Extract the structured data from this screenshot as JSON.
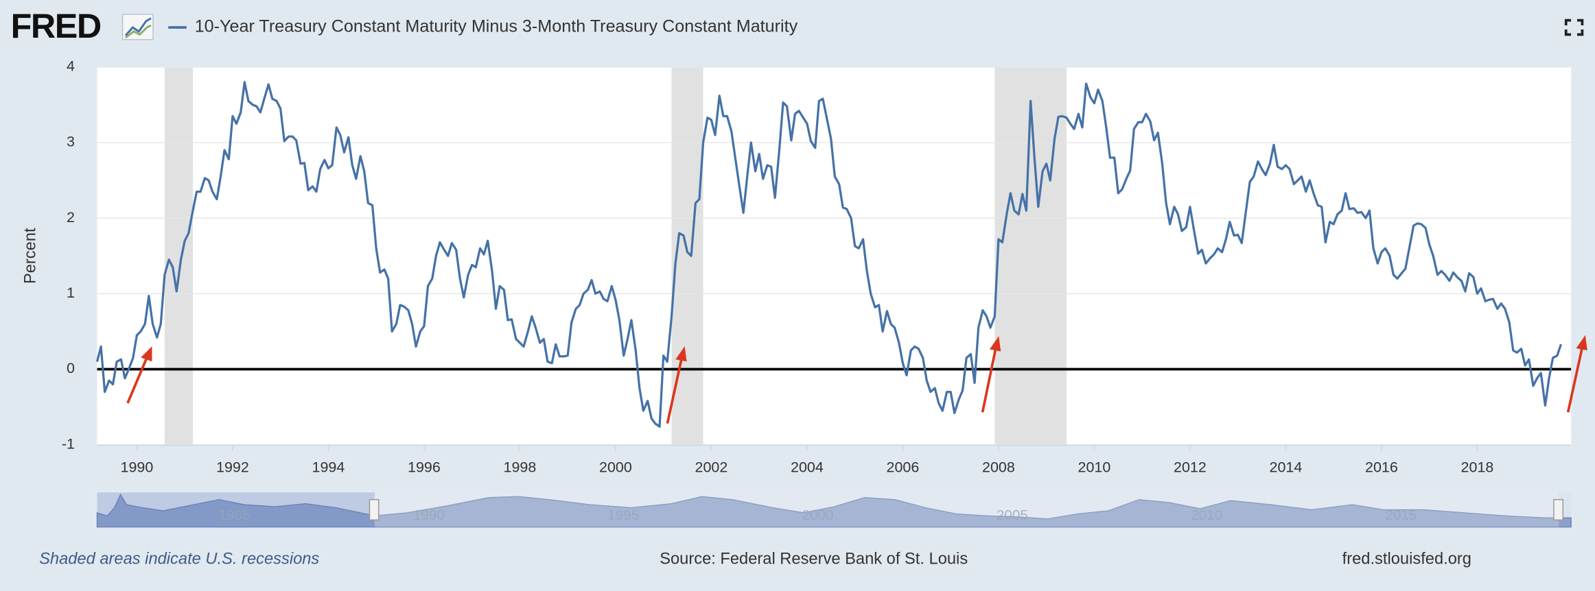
{
  "logo": "FRED",
  "chart_data": {
    "type": "line",
    "ylabel": "Percent",
    "series": [
      {
        "name": "10-Year Treasury Constant Maturity Minus 3-Month Treasury Constant Maturity",
        "color": "#4572a7",
        "x": [
          1989.17,
          1989.25,
          1989.33,
          1989.42,
          1989.5,
          1989.58,
          1989.67,
          1989.75,
          1989.83,
          1989.92,
          1990,
          1990.08,
          1990.17,
          1990.25,
          1990.33,
          1990.42,
          1990.5,
          1990.58,
          1990.67,
          1990.75,
          1990.83,
          1990.92,
          1991,
          1991.08,
          1991.17,
          1991.25,
          1991.33,
          1991.42,
          1991.5,
          1991.58,
          1991.67,
          1991.75,
          1991.83,
          1991.92,
          1992,
          1992.08,
          1992.17,
          1992.25,
          1992.33,
          1992.42,
          1992.5,
          1992.58,
          1992.67,
          1992.75,
          1992.83,
          1992.92,
          1993,
          1993.08,
          1993.17,
          1993.25,
          1993.33,
          1993.42,
          1993.5,
          1993.58,
          1993.67,
          1993.75,
          1993.83,
          1993.92,
          1994,
          1994.08,
          1994.17,
          1994.25,
          1994.33,
          1994.42,
          1994.5,
          1994.58,
          1994.67,
          1994.75,
          1994.83,
          1994.92,
          1995,
          1995.08,
          1995.17,
          1995.25,
          1995.33,
          1995.42,
          1995.5,
          1995.58,
          1995.67,
          1995.75,
          1995.83,
          1995.92,
          1996,
          1996.08,
          1996.17,
          1996.25,
          1996.33,
          1996.42,
          1996.5,
          1996.58,
          1996.67,
          1996.75,
          1996.83,
          1996.92,
          1997,
          1997.08,
          1997.17,
          1997.25,
          1997.33,
          1997.42,
          1997.5,
          1997.58,
          1997.67,
          1997.75,
          1997.83,
          1997.92,
          1998,
          1998.08,
          1998.17,
          1998.25,
          1998.33,
          1998.42,
          1998.5,
          1998.58,
          1998.67,
          1998.75,
          1998.83,
          1998.92,
          1999,
          1999.08,
          1999.17,
          1999.25,
          1999.33,
          1999.42,
          1999.5,
          1999.58,
          1999.67,
          1999.75,
          1999.83,
          1999.92,
          2000,
          2000.08,
          2000.17,
          2000.25,
          2000.33,
          2000.42,
          2000.5,
          2000.58,
          2000.67,
          2000.75,
          2000.83,
          2000.92,
          2001,
          2001.08,
          2001.17,
          2001.25,
          2001.33,
          2001.42,
          2001.5,
          2001.58,
          2001.67,
          2001.75,
          2001.83,
          2001.92,
          2002,
          2002.08,
          2002.17,
          2002.25,
          2002.33,
          2002.42,
          2002.5,
          2002.58,
          2002.67,
          2002.75,
          2002.83,
          2002.92,
          2003,
          2003.08,
          2003.17,
          2003.25,
          2003.33,
          2003.42,
          2003.5,
          2003.58,
          2003.67,
          2003.75,
          2003.83,
          2003.92,
          2004,
          2004.08,
          2004.17,
          2004.25,
          2004.33,
          2004.42,
          2004.5,
          2004.58,
          2004.67,
          2004.75,
          2004.83,
          2004.92,
          2005,
          2005.08,
          2005.17,
          2005.25,
          2005.33,
          2005.42,
          2005.5,
          2005.58,
          2005.67,
          2005.75,
          2005.83,
          2005.92,
          2006,
          2006.08,
          2006.17,
          2006.25,
          2006.33,
          2006.42,
          2006.5,
          2006.58,
          2006.67,
          2006.75,
          2006.83,
          2006.92,
          2007,
          2007.08,
          2007.17,
          2007.25,
          2007.33,
          2007.42,
          2007.5,
          2007.58,
          2007.67,
          2007.75,
          2007.83,
          2007.92,
          2008,
          2008.08,
          2008.17,
          2008.25,
          2008.33,
          2008.42,
          2008.5,
          2008.58,
          2008.67,
          2008.75,
          2008.83,
          2008.92,
          2009,
          2009.08,
          2009.17,
          2009.25,
          2009.33,
          2009.42,
          2009.5,
          2009.58,
          2009.67,
          2009.75,
          2009.83,
          2009.92,
          2010,
          2010.08,
          2010.17,
          2010.25,
          2010.33,
          2010.42,
          2010.5,
          2010.58,
          2010.67,
          2010.75,
          2010.83,
          2010.92,
          2011,
          2011.08,
          2011.17,
          2011.25,
          2011.33,
          2011.42,
          2011.5,
          2011.58,
          2011.67,
          2011.75,
          2011.83,
          2011.92,
          2012,
          2012.08,
          2012.17,
          2012.25,
          2012.33,
          2012.42,
          2012.5,
          2012.58,
          2012.67,
          2012.75,
          2012.83,
          2012.92,
          2013,
          2013.08,
          2013.17,
          2013.25,
          2013.33,
          2013.42,
          2013.5,
          2013.58,
          2013.67,
          2013.75,
          2013.83,
          2013.92,
          2014,
          2014.08,
          2014.17,
          2014.25,
          2014.33,
          2014.42,
          2014.5,
          2014.58,
          2014.67,
          2014.75,
          2014.83,
          2014.92,
          2015,
          2015.08,
          2015.17,
          2015.25,
          2015.33,
          2015.42,
          2015.5,
          2015.58,
          2015.67,
          2015.75,
          2015.83,
          2015.92,
          2016,
          2016.08,
          2016.17,
          2016.25,
          2016.33,
          2016.42,
          2016.5,
          2016.58,
          2016.67,
          2016.75,
          2016.83,
          2016.92,
          2017,
          2017.08,
          2017.17,
          2017.25,
          2017.33,
          2017.42,
          2017.5,
          2017.58,
          2017.67,
          2017.75,
          2017.83,
          2017.92,
          2018,
          2018.08,
          2018.17,
          2018.25,
          2018.33,
          2018.42,
          2018.5,
          2018.58,
          2018.67,
          2018.75,
          2018.83,
          2018.92,
          2019,
          2019.08,
          2019.17,
          2019.25,
          2019.33,
          2019.42,
          2019.5,
          2019.58,
          2019.67,
          2019.75
        ],
        "values": [
          0.1,
          0.3,
          -0.3,
          -0.15,
          -0.2,
          0.1,
          0.13,
          -0.12,
          0,
          0.15,
          0.45,
          0.5,
          0.6,
          0.97,
          0.6,
          0.42,
          0.6,
          1.25,
          1.45,
          1.35,
          1.03,
          1.45,
          1.7,
          1.8,
          2.1,
          2.35,
          2.35,
          2.53,
          2.5,
          2.35,
          2.25,
          2.55,
          2.9,
          2.78,
          3.35,
          3.25,
          3.4,
          3.8,
          3.55,
          3.5,
          3.48,
          3.4,
          3.6,
          3.77,
          3.58,
          3.55,
          3.45,
          3.02,
          3.08,
          3.08,
          3.03,
          2.72,
          2.73,
          2.37,
          2.42,
          2.35,
          2.65,
          2.77,
          2.66,
          2.7,
          3.2,
          3.1,
          2.87,
          3.07,
          2.7,
          2.52,
          2.82,
          2.62,
          2.2,
          2.17,
          1.6,
          1.28,
          1.32,
          1.2,
          0.5,
          0.6,
          0.85,
          0.83,
          0.78,
          0.6,
          0.3,
          0.5,
          0.57,
          1.1,
          1.2,
          1.5,
          1.68,
          1.58,
          1.5,
          1.67,
          1.58,
          1.2,
          0.95,
          1.25,
          1.38,
          1.35,
          1.6,
          1.52,
          1.7,
          1.3,
          0.8,
          1.1,
          1.05,
          0.65,
          0.66,
          0.4,
          0.35,
          0.3,
          0.5,
          0.7,
          0.55,
          0.35,
          0.4,
          0.1,
          0.08,
          0.33,
          0.17,
          0.17,
          0.18,
          0.62,
          0.8,
          0.85,
          1.0,
          1.05,
          1.18,
          1.0,
          1.03,
          0.93,
          0.9,
          1.1,
          0.92,
          0.65,
          0.18,
          0.4,
          0.65,
          0.25,
          -0.25,
          -0.55,
          -0.42,
          -0.65,
          -0.72,
          -0.76,
          0.18,
          0.1,
          0.7,
          1.4,
          1.8,
          1.77,
          1.55,
          1.5,
          2.2,
          2.25,
          3.0,
          3.33,
          3.3,
          3.1,
          3.62,
          3.35,
          3.35,
          3.15,
          2.8,
          2.45,
          2.07,
          2.55,
          3.0,
          2.62,
          2.85,
          2.52,
          2.7,
          2.68,
          2.27,
          2.9,
          3.53,
          3.48,
          3.03,
          3.38,
          3.42,
          3.33,
          3.25,
          3.02,
          2.93,
          3.55,
          3.58,
          3.3,
          3.05,
          2.55,
          2.45,
          2.14,
          2.12,
          2.0,
          1.63,
          1.6,
          1.72,
          1.3,
          1.0,
          0.82,
          0.85,
          0.5,
          0.77,
          0.6,
          0.55,
          0.35,
          0.08,
          -0.08,
          0.25,
          0.3,
          0.27,
          0.15,
          -0.15,
          -0.3,
          -0.25,
          -0.45,
          -0.55,
          -0.3,
          -0.3,
          -0.58,
          -0.4,
          -0.28,
          0.15,
          0.2,
          -0.18,
          0.55,
          0.78,
          0.7,
          0.55,
          0.7,
          1.72,
          1.68,
          2.05,
          2.33,
          2.1,
          2.05,
          2.32,
          2.1,
          3.55,
          2.8,
          2.15,
          2.62,
          2.72,
          2.5,
          3.05,
          3.34,
          3.35,
          3.33,
          3.25,
          3.18,
          3.38,
          3.2,
          3.78,
          3.6,
          3.52,
          3.7,
          3.55,
          3.2,
          2.8,
          2.8,
          2.33,
          2.38,
          2.52,
          2.63,
          3.18,
          3.27,
          3.27,
          3.38,
          3.28,
          3.03,
          3.13,
          2.72,
          2.2,
          1.92,
          2.15,
          2.05,
          1.83,
          1.88,
          2.15,
          1.85,
          1.53,
          1.58,
          1.4,
          1.47,
          1.52,
          1.6,
          1.55,
          1.72,
          1.95,
          1.77,
          1.78,
          1.67,
          2.1,
          2.48,
          2.55,
          2.75,
          2.65,
          2.57,
          2.72,
          2.97,
          2.68,
          2.65,
          2.7,
          2.65,
          2.45,
          2.5,
          2.55,
          2.35,
          2.5,
          2.33,
          2.17,
          2.15,
          1.68,
          1.95,
          1.92,
          2.05,
          2.1,
          2.33,
          2.12,
          2.13,
          2.07,
          2.08,
          2.0,
          2.1,
          1.6,
          1.4,
          1.55,
          1.6,
          1.5,
          1.25,
          1.2,
          1.27,
          1.33,
          1.6,
          1.9,
          1.93,
          1.92,
          1.87,
          1.65,
          1.5,
          1.25,
          1.3,
          1.25,
          1.17,
          1.28,
          1.22,
          1.17,
          1.03,
          1.27,
          1.22,
          1.0,
          1.07,
          0.9,
          0.92,
          0.93,
          0.8,
          0.87,
          0.8,
          0.62,
          0.25,
          0.22,
          0.27,
          0.05,
          0.13,
          -0.22,
          -0.12,
          -0.05,
          -0.48,
          -0.12,
          0.15,
          0.18,
          0.33
        ]
      }
    ],
    "xlim": [
      1989.17,
      2019.96
    ],
    "xticks": [
      1990,
      1992,
      1994,
      1996,
      1998,
      2000,
      2002,
      2004,
      2006,
      2008,
      2010,
      2012,
      2014,
      2016,
      2018
    ],
    "ylim": [
      -1,
      4
    ],
    "yticks": [
      -1,
      0,
      1,
      2,
      3,
      4
    ],
    "grid": true,
    "hline": 0,
    "recessions": [
      [
        1990.58,
        1991.17
      ],
      [
        2001.17,
        2001.83
      ],
      [
        2007.92,
        2009.42
      ]
    ],
    "recession_color": "#e1e1e1",
    "navigator": {
      "xlim": [
        1981.47,
        2019.37
      ],
      "xticks": [
        1985,
        1990,
        1995,
        2000,
        2005,
        2010,
        2015
      ]
    }
  },
  "footer": {
    "note": "Shaded areas indicate U.S. recessions",
    "source": "Source: Federal Reserve Bank of St. Louis",
    "site": "fred.stlouisfed.org"
  }
}
